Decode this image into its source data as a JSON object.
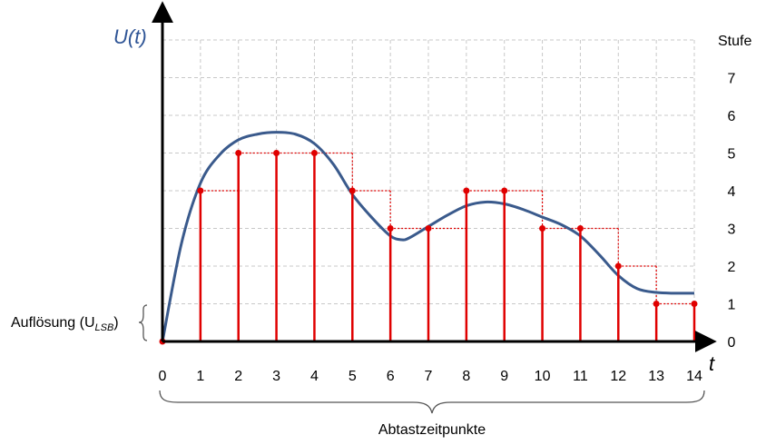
{
  "chart_data": {
    "type": "line",
    "ylabel": "U(t)",
    "xlabel": "t",
    "right_axis_label": "Stufe",
    "resolution_label": "Auflösung (U",
    "resolution_sub": "LSB",
    "resolution_close": ")",
    "bottom_label": "Abtastzeitpunkte",
    "x_ticks": [
      0,
      1,
      2,
      3,
      4,
      5,
      6,
      7,
      8,
      9,
      10,
      11,
      12,
      13,
      14
    ],
    "y_ticks": [
      0,
      1,
      2,
      3,
      4,
      5,
      6,
      7
    ],
    "xlim": [
      0,
      14
    ],
    "ylim": [
      0,
      8
    ],
    "grid": true,
    "colors": {
      "signal": "#3a5a8c",
      "samples": "#e00000",
      "axis": "#000000",
      "grid": "#c8c8c8",
      "ylabel": "#2f5596"
    },
    "series": [
      {
        "name": "",
        "role": "analog-signal",
        "points": [
          [
            0,
            0
          ],
          [
            0.5,
            2.6
          ],
          [
            1,
            4.2
          ],
          [
            1.5,
            4.95
          ],
          [
            2,
            5.35
          ],
          [
            2.5,
            5.5
          ],
          [
            3,
            5.55
          ],
          [
            3.5,
            5.5
          ],
          [
            4,
            5.25
          ],
          [
            4.5,
            4.7
          ],
          [
            5,
            3.9
          ],
          [
            5.5,
            3.3
          ],
          [
            6,
            2.8
          ],
          [
            6.3,
            2.7
          ],
          [
            6.5,
            2.75
          ],
          [
            7,
            3.05
          ],
          [
            7.5,
            3.35
          ],
          [
            8,
            3.6
          ],
          [
            8.5,
            3.7
          ],
          [
            9,
            3.65
          ],
          [
            9.5,
            3.5
          ],
          [
            10,
            3.3
          ],
          [
            10.5,
            3.1
          ],
          [
            11,
            2.8
          ],
          [
            11.5,
            2.3
          ],
          [
            12,
            1.75
          ],
          [
            12.5,
            1.4
          ],
          [
            13,
            1.3
          ],
          [
            13.5,
            1.28
          ],
          [
            14,
            1.28
          ]
        ]
      },
      {
        "name": "",
        "role": "quantized-samples",
        "x": [
          0,
          1,
          2,
          3,
          4,
          5,
          6,
          7,
          8,
          9,
          10,
          11,
          12,
          13,
          14
        ],
        "values": [
          0,
          4,
          5,
          5,
          5,
          4,
          3,
          3,
          4,
          4,
          3,
          3,
          2,
          1,
          1
        ]
      }
    ]
  }
}
